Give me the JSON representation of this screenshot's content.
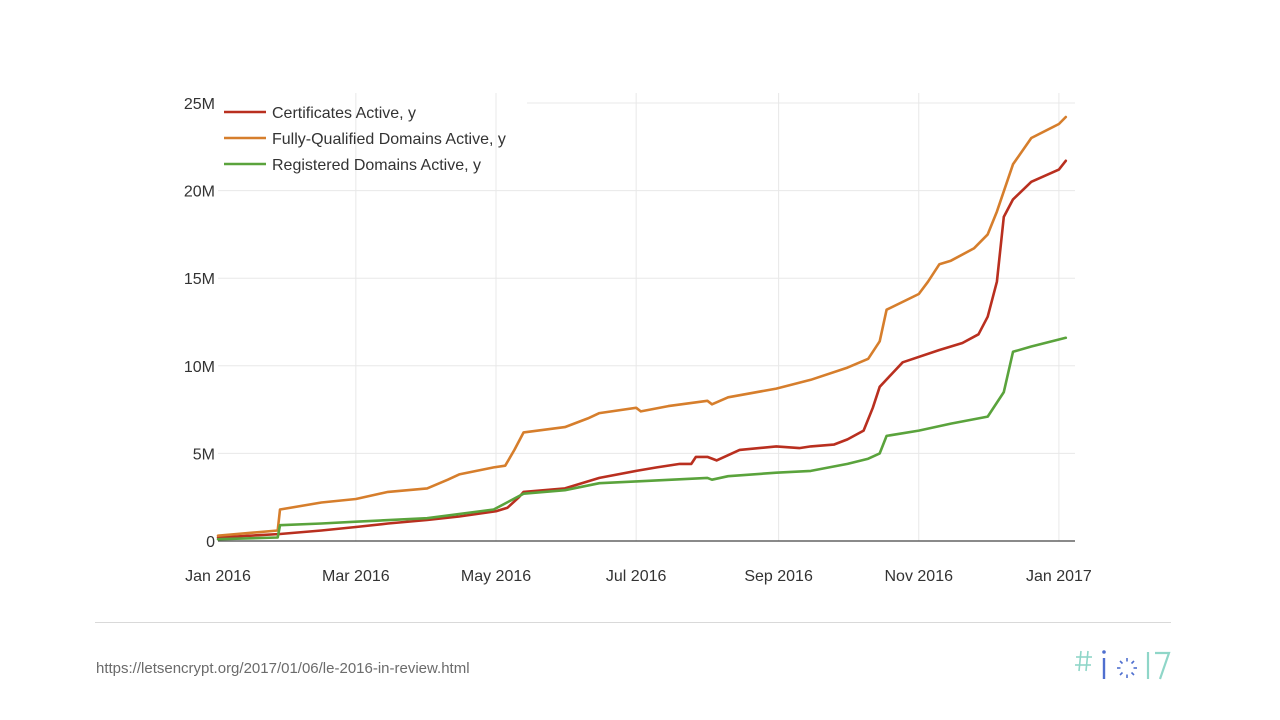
{
  "chart_data": {
    "type": "line",
    "xlim": [
      "2016-01-01",
      "2017-01-08"
    ],
    "ylim": [
      0,
      25000000
    ],
    "x_ticks": [
      {
        "date": "2016-01-01",
        "label": "Jan 2016"
      },
      {
        "date": "2016-03-01",
        "label": "Mar 2016"
      },
      {
        "date": "2016-05-01",
        "label": "May 2016"
      },
      {
        "date": "2016-07-01",
        "label": "Jul 2016"
      },
      {
        "date": "2016-09-01",
        "label": "Sep 2016"
      },
      {
        "date": "2016-11-01",
        "label": "Nov 2016"
      },
      {
        "date": "2017-01-01",
        "label": "Jan 2017"
      }
    ],
    "y_ticks": [
      {
        "value": 0,
        "label": "0"
      },
      {
        "value": 5000000,
        "label": "5M"
      },
      {
        "value": 10000000,
        "label": "10M"
      },
      {
        "value": 15000000,
        "label": "15M"
      },
      {
        "value": 20000000,
        "label": "20M"
      },
      {
        "value": 25000000,
        "label": "25M"
      }
    ],
    "grid": true,
    "legend_position": "top-left",
    "series": [
      {
        "name": "Certificates Active, y",
        "color": "#b92f1f",
        "points": [
          [
            "2016-01-01",
            200000
          ],
          [
            "2016-01-28",
            400000
          ],
          [
            "2016-02-15",
            600000
          ],
          [
            "2016-03-01",
            800000
          ],
          [
            "2016-03-15",
            1000000
          ],
          [
            "2016-04-01",
            1200000
          ],
          [
            "2016-04-15",
            1400000
          ],
          [
            "2016-05-01",
            1700000
          ],
          [
            "2016-05-06",
            1900000
          ],
          [
            "2016-05-11",
            2500000
          ],
          [
            "2016-05-13",
            2800000
          ],
          [
            "2016-05-31",
            3000000
          ],
          [
            "2016-06-05",
            3200000
          ],
          [
            "2016-06-15",
            3600000
          ],
          [
            "2016-07-01",
            4000000
          ],
          [
            "2016-07-10",
            4200000
          ],
          [
            "2016-07-20",
            4400000
          ],
          [
            "2016-07-25",
            4400000
          ],
          [
            "2016-07-27",
            4800000
          ],
          [
            "2016-08-01",
            4800000
          ],
          [
            "2016-08-05",
            4600000
          ],
          [
            "2016-08-15",
            5200000
          ],
          [
            "2016-08-31",
            5400000
          ],
          [
            "2016-09-10",
            5300000
          ],
          [
            "2016-09-15",
            5400000
          ],
          [
            "2016-09-25",
            5500000
          ],
          [
            "2016-10-01",
            5800000
          ],
          [
            "2016-10-08",
            6300000
          ],
          [
            "2016-10-12",
            7600000
          ],
          [
            "2016-10-15",
            8800000
          ],
          [
            "2016-10-25",
            10200000
          ],
          [
            "2016-11-10",
            10900000
          ],
          [
            "2016-11-20",
            11300000
          ],
          [
            "2016-11-27",
            11800000
          ],
          [
            "2016-12-01",
            12800000
          ],
          [
            "2016-12-05",
            14800000
          ],
          [
            "2016-12-08",
            18500000
          ],
          [
            "2016-12-12",
            19500000
          ],
          [
            "2016-12-20",
            20500000
          ],
          [
            "2017-01-01",
            21200000
          ],
          [
            "2017-01-04",
            21700000
          ]
        ]
      },
      {
        "name": "Fully-Qualified Domains Active, y",
        "color": "#d67e2c",
        "points": [
          [
            "2016-01-01",
            300000
          ],
          [
            "2016-01-27",
            600000
          ],
          [
            "2016-01-28",
            1800000
          ],
          [
            "2016-02-15",
            2200000
          ],
          [
            "2016-03-01",
            2400000
          ],
          [
            "2016-03-15",
            2800000
          ],
          [
            "2016-04-01",
            3000000
          ],
          [
            "2016-04-10",
            3500000
          ],
          [
            "2016-04-15",
            3800000
          ],
          [
            "2016-04-30",
            4200000
          ],
          [
            "2016-05-05",
            4300000
          ],
          [
            "2016-05-09",
            5200000
          ],
          [
            "2016-05-13",
            6200000
          ],
          [
            "2016-05-31",
            6500000
          ],
          [
            "2016-06-10",
            7000000
          ],
          [
            "2016-06-15",
            7300000
          ],
          [
            "2016-07-01",
            7600000
          ],
          [
            "2016-07-03",
            7400000
          ],
          [
            "2016-07-15",
            7700000
          ],
          [
            "2016-08-01",
            8000000
          ],
          [
            "2016-08-03",
            7800000
          ],
          [
            "2016-08-10",
            8200000
          ],
          [
            "2016-08-31",
            8700000
          ],
          [
            "2016-09-15",
            9200000
          ],
          [
            "2016-10-01",
            9900000
          ],
          [
            "2016-10-10",
            10400000
          ],
          [
            "2016-10-15",
            11400000
          ],
          [
            "2016-10-18",
            13200000
          ],
          [
            "2016-11-01",
            14100000
          ],
          [
            "2016-11-05",
            14800000
          ],
          [
            "2016-11-10",
            15800000
          ],
          [
            "2016-11-15",
            16000000
          ],
          [
            "2016-11-25",
            16700000
          ],
          [
            "2016-12-01",
            17500000
          ],
          [
            "2016-12-05",
            18800000
          ],
          [
            "2016-12-12",
            21500000
          ],
          [
            "2016-12-20",
            23000000
          ],
          [
            "2017-01-01",
            23800000
          ],
          [
            "2017-01-04",
            24200000
          ]
        ]
      },
      {
        "name": "Registered Domains Active, y",
        "color": "#5aa33c",
        "points": [
          [
            "2016-01-01",
            100000
          ],
          [
            "2016-01-27",
            200000
          ],
          [
            "2016-01-28",
            900000
          ],
          [
            "2016-02-15",
            1000000
          ],
          [
            "2016-03-01",
            1100000
          ],
          [
            "2016-04-01",
            1300000
          ],
          [
            "2016-04-30",
            1800000
          ],
          [
            "2016-05-13",
            2700000
          ],
          [
            "2016-05-31",
            2900000
          ],
          [
            "2016-06-15",
            3300000
          ],
          [
            "2016-07-01",
            3400000
          ],
          [
            "2016-08-01",
            3600000
          ],
          [
            "2016-08-03",
            3500000
          ],
          [
            "2016-08-10",
            3700000
          ],
          [
            "2016-08-31",
            3900000
          ],
          [
            "2016-09-15",
            4000000
          ],
          [
            "2016-10-01",
            4400000
          ],
          [
            "2016-10-10",
            4700000
          ],
          [
            "2016-10-15",
            5000000
          ],
          [
            "2016-10-18",
            6000000
          ],
          [
            "2016-11-01",
            6300000
          ],
          [
            "2016-11-15",
            6700000
          ],
          [
            "2016-12-01",
            7100000
          ],
          [
            "2016-12-08",
            8500000
          ],
          [
            "2016-12-12",
            10800000
          ],
          [
            "2016-12-20",
            11100000
          ],
          [
            "2017-01-01",
            11500000
          ],
          [
            "2017-01-04",
            11600000
          ]
        ]
      }
    ]
  },
  "footer": {
    "source_url": "https://letsencrypt.org/2017/01/06/le-2016-in-review.html",
    "logo_text": "#io17"
  }
}
